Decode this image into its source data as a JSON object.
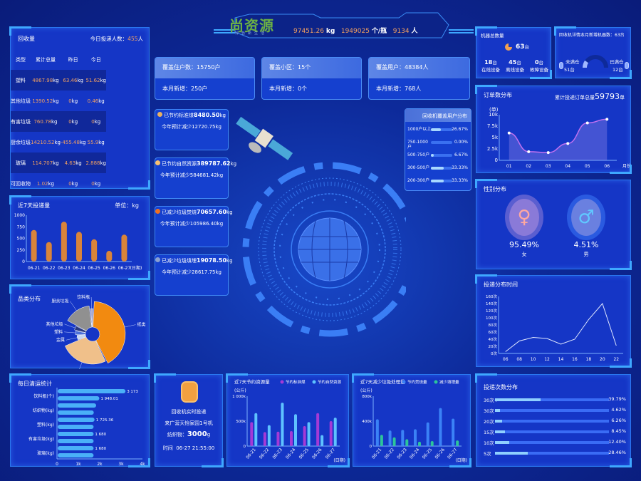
{
  "header": {
    "logo_text": "尚资源",
    "logo_sub": "绿色新生活",
    "weight": "97451.26",
    "weight_unit": "kg",
    "count": "1949025",
    "count_unit": "个/瓶",
    "people": "9134",
    "people_unit": "人"
  },
  "colors": {
    "accent": "#f2a060",
    "panel": "#1536c6",
    "border": "#2a78f0",
    "bar_orange": "#d9843a",
    "purple": "#a43ad6",
    "lightblue": "#5ec2ff",
    "blue": "#3b82f6",
    "green": "#2cc59a"
  },
  "recycle": {
    "title": "回收量",
    "today_label": "今日投递人数：",
    "today_value": "455",
    "today_unit": "人",
    "headers": [
      "类型",
      "累计总量",
      "昨日",
      "今日"
    ],
    "rows": [
      [
        "塑料",
        "4867.98",
        "63.46",
        "51.62"
      ],
      [
        "其他垃圾",
        "1390.52",
        "0",
        "0.46"
      ],
      [
        "有害垃圾",
        "760.78",
        "0",
        "0"
      ],
      [
        "厨余垃圾",
        "14210.52",
        "-455.48",
        "55.9"
      ],
      [
        "玻璃",
        "114.707",
        "4.63",
        "2.888"
      ],
      [
        "可回收物",
        "1.02",
        "0",
        "0"
      ]
    ],
    "unit": "kg"
  },
  "weekly": {
    "title": "近7天投递量",
    "unit_label": "单位：kg"
  },
  "category": {
    "title": "品类分布"
  },
  "daily": {
    "title": "每日清运统计"
  },
  "stats": [
    {
      "head": "覆盖住户数：15750户",
      "sub": "本月新增：250户"
    },
    {
      "head": "覆盖小区：15个",
      "sub": "本月新增：0个"
    },
    {
      "head": "覆盖用户：48384人",
      "sub": "本月新增：768人"
    }
  ],
  "savings": [
    {
      "icon": "coal-icon",
      "label": "已节约标准煤",
      "value": "8480.50",
      "unit": "kg",
      "sub": "今年预计减少12720.75kg"
    },
    {
      "icon": "resource-icon",
      "label": "已节约自然资源",
      "value": "389787.62",
      "unit": "kg",
      "sub": "今年预计减少584681.42kg"
    },
    {
      "icon": "fire-icon",
      "label": "已减少垃圾焚烧",
      "value": "70657.60",
      "unit": "kg",
      "sub": "今年预计减少105986.40kg"
    },
    {
      "icon": "landfill-icon",
      "label": "已减少垃圾填埋",
      "value": "19078.50",
      "unit": "kg",
      "sub": "今年预计减少28617.75kg"
    }
  ],
  "coverage": {
    "title": "回收机覆盖用户分布",
    "rows": [
      {
        "label": "1000户以上",
        "pct": 26.67,
        "text": "26.67%"
      },
      {
        "label": "750-1000户",
        "pct": 0,
        "text": "0.00%"
      },
      {
        "label": "500-750户",
        "pct": 6.67,
        "text": "6.67%"
      },
      {
        "label": "300-500户",
        "pct": 33.33,
        "text": "33.33%"
      },
      {
        "label": "200-300户",
        "pct": 33.33,
        "text": "33.33%"
      }
    ]
  },
  "realtime": {
    "title": "回收机实时投递",
    "machine": "来广营天怡家园1号机",
    "item_label": "纺织物：",
    "item_value": "3000",
    "item_unit": "g",
    "time_label": "时间",
    "time_value": "06-27 21:55:00"
  },
  "machines": {
    "title": "机器总数量",
    "total": "63",
    "total_unit": "台",
    "items": [
      {
        "value": "18",
        "unit": "台",
        "label": "在线设备"
      },
      {
        "value": "45",
        "unit": "台",
        "label": "离线设备"
      },
      {
        "value": "0",
        "unit": "台",
        "label": "故障设备"
      }
    ]
  },
  "bins": {
    "title": "回收机详情本月新增机器数：63台",
    "left_label": "未满仓",
    "left_value": "51台",
    "right_label": "已满仓",
    "right_value": "12台",
    "full_fraction": 0.19
  },
  "orders": {
    "title": "订单数分布",
    "total_label": "累计投递订单总量",
    "total_value": "59793",
    "total_unit": "单"
  },
  "gender": {
    "title": "性别分布",
    "female_pct": "95.49%",
    "female_label": "女",
    "male_pct": "4.51%",
    "male_label": "男"
  },
  "time_dist": {
    "title": "投递分布时间"
  },
  "freq": {
    "title": "投递次数分布",
    "rows": [
      {
        "label": "30次+",
        "pct": 39.79,
        "text": "39.79%"
      },
      {
        "label": "30次",
        "pct": 4.62,
        "text": "4.62%"
      },
      {
        "label": "20次",
        "pct": 6.26,
        "text": "6.26%"
      },
      {
        "label": "15次",
        "pct": 8.45,
        "text": "8.45%"
      },
      {
        "label": "10次",
        "pct": 12.4,
        "text": "12.40%"
      },
      {
        "label": "5次",
        "pct": 28.46,
        "text": "28.46%"
      }
    ]
  },
  "chart_data": [
    {
      "id": "weekly",
      "type": "bar",
      "categories": [
        "06-21",
        "06-22",
        "06-23",
        "06-24",
        "06-25",
        "06-26",
        "06-27"
      ],
      "values": [
        680,
        420,
        860,
        640,
        480,
        230,
        580
      ],
      "ylim": [
        0,
        1000
      ],
      "yticks": [
        "0",
        "250",
        "500",
        "750",
        "1000"
      ],
      "xlabel": "(日期)",
      "ylabel": ""
    },
    {
      "id": "category",
      "type": "pie",
      "categories": [
        "纸类",
        "纺织物",
        "金属",
        "塑料",
        "其他垃圾",
        "厨余垃圾",
        "饮料瓶"
      ],
      "values": [
        40,
        25,
        5,
        4,
        4,
        15,
        2
      ],
      "colors": [
        "#f28a10",
        "#f0c08a",
        "#c8d8f0",
        "#4a70d8",
        "#2a3a80",
        "#909090",
        "#b0b0d0"
      ]
    },
    {
      "id": "daily",
      "type": "bar-horizontal",
      "categories": [
        "饮料瓶(个)",
        "",
        "纺织物(kg)",
        "",
        "塑料(kg)",
        "",
        "有害垃圾(kg)",
        "",
        "玻璃(kg)",
        ""
      ],
      "values": [
        3173,
        1948.01,
        1800,
        1690,
        1725.36,
        1680,
        1680,
        1680,
        1680,
        1680
      ],
      "data_labels": [
        "3 173",
        "1 948.01",
        "",
        "",
        "1 725.36",
        "",
        "1 680",
        "",
        "1 680",
        ""
      ],
      "xlim": [
        0,
        4000
      ],
      "xticks": [
        "0",
        "1k",
        "2k",
        "3k",
        "4k"
      ]
    },
    {
      "id": "save",
      "type": "bar",
      "title": "近7天节约资源量",
      "ylabel": "(公斤)",
      "xlabel": "(日期)",
      "categories": [
        "06-21",
        "06-22",
        "06-23",
        "06-24",
        "06-25",
        "06-26",
        "06-27"
      ],
      "ylim": [
        0,
        1000
      ],
      "yticks": [
        "0",
        "500k",
        "1 000k"
      ],
      "series": [
        {
          "name": "节约标准煤",
          "values": [
            480,
            280,
            290,
            300,
            400,
            660,
            500
          ]
        },
        {
          "name": "节约自然资源",
          "values": [
            660,
            420,
            870,
            640,
            480,
            220,
            570
          ]
        }
      ]
    },
    {
      "id": "reduce",
      "type": "bar",
      "title": "近7天减少垃圾处理量",
      "ylabel": "(公斤)",
      "xlabel": "(日期)",
      "categories": [
        "06-21",
        "06-22",
        "06-23",
        "06-24",
        "06-25",
        "06-26",
        "06-27"
      ],
      "ylim": [
        0,
        800
      ],
      "yticks": [
        "0",
        "400k",
        "800k"
      ],
      "series": [
        {
          "name": "节约焚烧量",
          "values": [
            430,
            250,
            260,
            270,
            380,
            610,
            440
          ]
        },
        {
          "name": "减少填埋量",
          "values": [
            180,
            140,
            110,
            70,
            80,
            0,
            90
          ]
        }
      ]
    },
    {
      "id": "orders",
      "type": "area",
      "categories": [
        "01",
        "02",
        "03",
        "04",
        "05",
        "06"
      ],
      "values": [
        6000,
        1900,
        1700,
        3700,
        8200,
        9000
      ],
      "ylim": [
        0,
        10000
      ],
      "yticks": [
        "0",
        "2.5k",
        "5k",
        "7.5k",
        "10k"
      ],
      "ylabel": "(单)",
      "xlabel": "月份"
    },
    {
      "id": "time",
      "type": "line",
      "categories": [
        "06",
        "08",
        "10",
        "12",
        "14",
        "16",
        "18",
        "20",
        "22"
      ],
      "values": [
        5,
        35,
        45,
        42,
        26,
        40,
        95,
        140,
        22
      ],
      "ylim": [
        0,
        160
      ],
      "yticks": [
        "0次",
        "20次",
        "40次",
        "60次",
        "80次",
        "100次",
        "120次",
        "140次",
        "160次"
      ]
    }
  ]
}
